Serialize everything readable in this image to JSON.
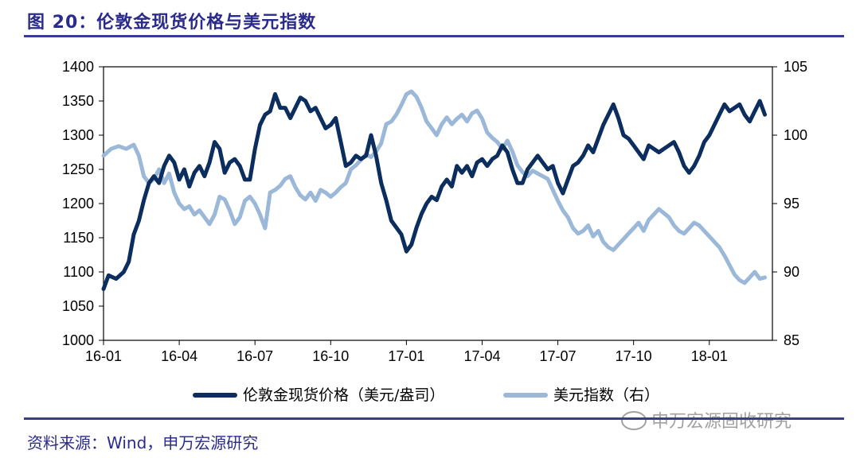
{
  "header": {
    "title": "图 20：伦敦金现货价格与美元指数"
  },
  "footer": {
    "source": "资料来源：Wind，申万宏源研究",
    "watermark": "申万宏源固收研究"
  },
  "colors": {
    "gold": "#0b2e5e",
    "dxy": "#9bb8d8",
    "accent": "#2b2b8c"
  },
  "chart_data": {
    "type": "line",
    "title": "伦敦金现货价格与美元指数",
    "x_ticks": [
      "16-01",
      "16-04",
      "16-07",
      "16-10",
      "17-01",
      "17-04",
      "17-07",
      "17-10",
      "18-01"
    ],
    "y_left_ticks": [
      "1400",
      "1350",
      "1300",
      "1250",
      "1200",
      "1150",
      "1100",
      "1050",
      "1000"
    ],
    "y_right_ticks": [
      "105",
      "100",
      "95",
      "90",
      "85"
    ],
    "ylim_left": [
      1000,
      1400
    ],
    "ylim_right": [
      85,
      105
    ],
    "xlim_months": [
      0,
      26.5
    ],
    "series": [
      {
        "name": "伦敦金现货价格（美元/盎司）",
        "axis": "left",
        "points": [
          [
            0.0,
            1075
          ],
          [
            0.2,
            1095
          ],
          [
            0.5,
            1090
          ],
          [
            0.8,
            1100
          ],
          [
            1.0,
            1115
          ],
          [
            1.2,
            1155
          ],
          [
            1.4,
            1175
          ],
          [
            1.6,
            1205
          ],
          [
            1.8,
            1230
          ],
          [
            2.0,
            1240
          ],
          [
            2.2,
            1230
          ],
          [
            2.4,
            1255
          ],
          [
            2.6,
            1270
          ],
          [
            2.8,
            1260
          ],
          [
            3.0,
            1235
          ],
          [
            3.2,
            1250
          ],
          [
            3.4,
            1225
          ],
          [
            3.6,
            1245
          ],
          [
            3.8,
            1255
          ],
          [
            4.0,
            1240
          ],
          [
            4.2,
            1260
          ],
          [
            4.4,
            1290
          ],
          [
            4.6,
            1280
          ],
          [
            4.8,
            1245
          ],
          [
            5.0,
            1260
          ],
          [
            5.2,
            1265
          ],
          [
            5.4,
            1255
          ],
          [
            5.6,
            1235
          ],
          [
            5.8,
            1235
          ],
          [
            6.0,
            1280
          ],
          [
            6.2,
            1315
          ],
          [
            6.4,
            1330
          ],
          [
            6.6,
            1335
          ],
          [
            6.8,
            1360
          ],
          [
            7.0,
            1340
          ],
          [
            7.2,
            1340
          ],
          [
            7.4,
            1325
          ],
          [
            7.6,
            1340
          ],
          [
            7.8,
            1355
          ],
          [
            8.0,
            1350
          ],
          [
            8.2,
            1335
          ],
          [
            8.4,
            1340
          ],
          [
            8.6,
            1325
          ],
          [
            8.8,
            1310
          ],
          [
            9.0,
            1315
          ],
          [
            9.2,
            1325
          ],
          [
            9.4,
            1290
          ],
          [
            9.6,
            1255
          ],
          [
            9.8,
            1260
          ],
          [
            10.0,
            1270
          ],
          [
            10.2,
            1265
          ],
          [
            10.4,
            1270
          ],
          [
            10.6,
            1300
          ],
          [
            10.8,
            1270
          ],
          [
            11.0,
            1230
          ],
          [
            11.2,
            1205
          ],
          [
            11.4,
            1175
          ],
          [
            11.6,
            1165
          ],
          [
            11.8,
            1155
          ],
          [
            12.0,
            1130
          ],
          [
            12.2,
            1140
          ],
          [
            12.4,
            1165
          ],
          [
            12.6,
            1185
          ],
          [
            12.8,
            1200
          ],
          [
            13.0,
            1210
          ],
          [
            13.2,
            1205
          ],
          [
            13.4,
            1225
          ],
          [
            13.6,
            1235
          ],
          [
            13.8,
            1225
          ],
          [
            14.0,
            1255
          ],
          [
            14.2,
            1245
          ],
          [
            14.4,
            1255
          ],
          [
            14.6,
            1240
          ],
          [
            14.8,
            1260
          ],
          [
            15.0,
            1265
          ],
          [
            15.2,
            1255
          ],
          [
            15.4,
            1265
          ],
          [
            15.6,
            1270
          ],
          [
            15.8,
            1285
          ],
          [
            16.0,
            1275
          ],
          [
            16.2,
            1250
          ],
          [
            16.4,
            1230
          ],
          [
            16.6,
            1230
          ],
          [
            16.8,
            1250
          ],
          [
            17.0,
            1260
          ],
          [
            17.2,
            1270
          ],
          [
            17.4,
            1260
          ],
          [
            17.6,
            1250
          ],
          [
            17.8,
            1255
          ],
          [
            18.0,
            1230
          ],
          [
            18.2,
            1215
          ],
          [
            18.4,
            1235
          ],
          [
            18.6,
            1255
          ],
          [
            18.8,
            1260
          ],
          [
            19.0,
            1270
          ],
          [
            19.2,
            1285
          ],
          [
            19.4,
            1275
          ],
          [
            19.6,
            1295
          ],
          [
            19.8,
            1315
          ],
          [
            20.0,
            1330
          ],
          [
            20.2,
            1345
          ],
          [
            20.4,
            1325
          ],
          [
            20.6,
            1300
          ],
          [
            20.8,
            1295
          ],
          [
            21.0,
            1285
          ],
          [
            21.2,
            1275
          ],
          [
            21.4,
            1265
          ],
          [
            21.6,
            1285
          ],
          [
            21.8,
            1280
          ],
          [
            22.0,
            1275
          ],
          [
            22.2,
            1280
          ],
          [
            22.4,
            1285
          ],
          [
            22.6,
            1290
          ],
          [
            22.8,
            1275
          ],
          [
            23.0,
            1255
          ],
          [
            23.2,
            1245
          ],
          [
            23.4,
            1255
          ],
          [
            23.6,
            1270
          ],
          [
            23.8,
            1290
          ],
          [
            24.0,
            1300
          ],
          [
            24.2,
            1315
          ],
          [
            24.4,
            1330
          ],
          [
            24.6,
            1345
          ],
          [
            24.8,
            1335
          ],
          [
            25.0,
            1340
          ],
          [
            25.2,
            1345
          ],
          [
            25.4,
            1330
          ],
          [
            25.6,
            1320
          ],
          [
            25.8,
            1335
          ],
          [
            26.0,
            1350
          ],
          [
            26.2,
            1330
          ]
        ]
      },
      {
        "name": "美元指数（右）",
        "axis": "right",
        "points": [
          [
            0.0,
            98.5
          ],
          [
            0.3,
            99.0
          ],
          [
            0.6,
            99.2
          ],
          [
            0.9,
            99.0
          ],
          [
            1.2,
            99.3
          ],
          [
            1.4,
            98.5
          ],
          [
            1.6,
            97.0
          ],
          [
            1.8,
            96.5
          ],
          [
            2.0,
            96.8
          ],
          [
            2.2,
            97.5
          ],
          [
            2.4,
            96.5
          ],
          [
            2.6,
            97.2
          ],
          [
            2.8,
            95.8
          ],
          [
            3.0,
            95.0
          ],
          [
            3.2,
            94.6
          ],
          [
            3.4,
            94.8
          ],
          [
            3.6,
            94.2
          ],
          [
            3.8,
            94.5
          ],
          [
            4.0,
            94.0
          ],
          [
            4.2,
            93.5
          ],
          [
            4.4,
            94.2
          ],
          [
            4.6,
            95.5
          ],
          [
            4.8,
            95.3
          ],
          [
            5.0,
            94.5
          ],
          [
            5.2,
            93.5
          ],
          [
            5.4,
            94.0
          ],
          [
            5.6,
            95.2
          ],
          [
            5.8,
            95.5
          ],
          [
            6.0,
            95.0
          ],
          [
            6.2,
            94.2
          ],
          [
            6.4,
            93.2
          ],
          [
            6.6,
            95.8
          ],
          [
            6.8,
            96.0
          ],
          [
            7.0,
            96.3
          ],
          [
            7.2,
            96.8
          ],
          [
            7.4,
            97.0
          ],
          [
            7.6,
            96.2
          ],
          [
            7.8,
            95.6
          ],
          [
            8.0,
            95.3
          ],
          [
            8.2,
            95.8
          ],
          [
            8.4,
            95.2
          ],
          [
            8.6,
            96.0
          ],
          [
            8.8,
            95.8
          ],
          [
            9.0,
            95.5
          ],
          [
            9.2,
            95.8
          ],
          [
            9.4,
            96.2
          ],
          [
            9.6,
            96.5
          ],
          [
            9.8,
            97.5
          ],
          [
            10.0,
            97.8
          ],
          [
            10.2,
            98.2
          ],
          [
            10.4,
            98.6
          ],
          [
            10.6,
            98.4
          ],
          [
            10.8,
            98.8
          ],
          [
            11.0,
            99.4
          ],
          [
            11.2,
            100.8
          ],
          [
            11.4,
            101.0
          ],
          [
            11.6,
            101.5
          ],
          [
            11.8,
            102.2
          ],
          [
            12.0,
            103.0
          ],
          [
            12.2,
            103.2
          ],
          [
            12.4,
            102.8
          ],
          [
            12.6,
            102.0
          ],
          [
            12.8,
            101.0
          ],
          [
            13.0,
            100.5
          ],
          [
            13.2,
            100.0
          ],
          [
            13.4,
            100.8
          ],
          [
            13.6,
            101.3
          ],
          [
            13.8,
            100.8
          ],
          [
            14.0,
            101.2
          ],
          [
            14.2,
            101.5
          ],
          [
            14.4,
            101.0
          ],
          [
            14.6,
            101.6
          ],
          [
            14.8,
            101.8
          ],
          [
            15.0,
            101.2
          ],
          [
            15.2,
            100.2
          ],
          [
            15.4,
            99.8
          ],
          [
            15.6,
            99.5
          ],
          [
            15.8,
            99.0
          ],
          [
            16.0,
            99.6
          ],
          [
            16.2,
            98.8
          ],
          [
            16.4,
            97.8
          ],
          [
            16.6,
            97.3
          ],
          [
            16.8,
            97.0
          ],
          [
            17.0,
            97.4
          ],
          [
            17.2,
            97.2
          ],
          [
            17.4,
            97.0
          ],
          [
            17.6,
            96.8
          ],
          [
            17.8,
            96.0
          ],
          [
            18.0,
            95.2
          ],
          [
            18.2,
            94.5
          ],
          [
            18.4,
            94.0
          ],
          [
            18.6,
            93.2
          ],
          [
            18.8,
            92.8
          ],
          [
            19.0,
            93.0
          ],
          [
            19.2,
            93.4
          ],
          [
            19.4,
            92.6
          ],
          [
            19.6,
            93.0
          ],
          [
            19.8,
            92.2
          ],
          [
            20.0,
            91.8
          ],
          [
            20.2,
            91.6
          ],
          [
            20.4,
            92.0
          ],
          [
            20.6,
            92.4
          ],
          [
            20.8,
            92.8
          ],
          [
            21.0,
            93.2
          ],
          [
            21.2,
            93.6
          ],
          [
            21.4,
            93.0
          ],
          [
            21.6,
            93.8
          ],
          [
            21.8,
            94.2
          ],
          [
            22.0,
            94.6
          ],
          [
            22.2,
            94.3
          ],
          [
            22.4,
            94.0
          ],
          [
            22.6,
            93.4
          ],
          [
            22.8,
            93.0
          ],
          [
            23.0,
            92.8
          ],
          [
            23.2,
            93.2
          ],
          [
            23.4,
            93.6
          ],
          [
            23.6,
            93.4
          ],
          [
            23.8,
            93.0
          ],
          [
            24.0,
            92.6
          ],
          [
            24.2,
            92.2
          ],
          [
            24.4,
            91.8
          ],
          [
            24.6,
            91.2
          ],
          [
            24.8,
            90.5
          ],
          [
            25.0,
            89.8
          ],
          [
            25.2,
            89.4
          ],
          [
            25.4,
            89.2
          ],
          [
            25.6,
            89.6
          ],
          [
            25.8,
            90.0
          ],
          [
            26.0,
            89.5
          ],
          [
            26.2,
            89.6
          ]
        ]
      }
    ]
  }
}
